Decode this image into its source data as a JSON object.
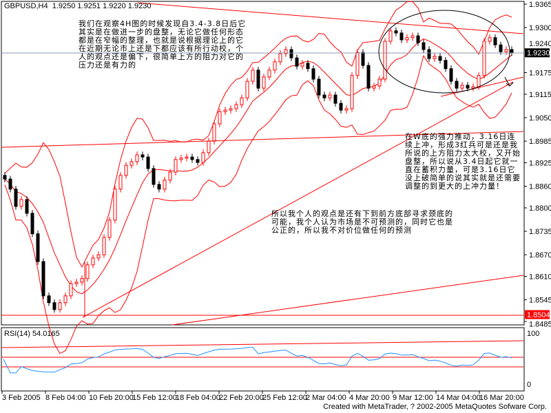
{
  "header": {
    "symbol": "GBPUSD,H4",
    "ohlc": "1.9250 1.9251 1.9220 1.9230"
  },
  "rsi": {
    "label": "RSI(14) 54.0165",
    "axis": [
      "100",
      "0"
    ]
  },
  "credit": "Created with MetaTrader, ? 2002-2005 MetaQuotes Sofware Corp.",
  "notes": [
    "我们在观察4H图的时候发现自3.4-3.8日后它其实是在做进一步的盘整，无论它做任何形态都是在窄幅的整理，也就是说根据理论上的它在近期无论市上还是下都应该有所行动校，个人的观点还是偏下，很简单上方的阻力对它的压力还是有力的",
    "在W底的强力推动，3.16日连续上冲，形成3红兵可是还是我所说的上方阻力太大校，又开始盘整，所以说从3.4日起它就一直在蓄积力量，可是3.16日它没上破简单的说其实就是还需要调整的到更大的上冲力量！",
    "所以我个人的观点是还有下到前方底部寻求颈底的可能，我个人认为市场是不可预测的，同时它也是公正的，所以我不对价位做任何的预测"
  ],
  "chart_data": {
    "type": "candlestick",
    "title": "GBPUSD,H4",
    "ylim": [
      1.8485,
      1.9365
    ],
    "y_ticks": [
      "1.9365",
      "1.9300",
      "1.9240",
      "1.9175",
      "1.9115",
      "1.9050",
      "1.8985",
      "1.8925",
      "1.8860",
      "1.8800",
      "1.8735",
      "1.8670",
      "1.8610",
      "1.8545",
      "1.8485"
    ],
    "x_ticks": [
      "3 Feb 2005",
      "8 Feb 04:00",
      "10 Feb 20:00",
      "15 Feb 12:00",
      "18 Feb 04:00",
      "22 Feb 20:00",
      "25 Feb 12:00",
      "2 Mar 04:00",
      "4 Mar 20:00",
      "9 Mar 12:00",
      "14 Mar 04:00",
      "16 Mar 20:00"
    ],
    "current_price": "1.9230",
    "marked_level": "1.8504",
    "colors": {
      "up": "#ff0000",
      "down": "#000000",
      "bands": "#ff0000",
      "rsi": "#1e90ff",
      "current_label_bg": "#000000",
      "level_label_bg": "#ff0000"
    },
    "closes": [
      1.888,
      1.8852,
      1.8804,
      1.8823,
      1.8785,
      1.8728,
      1.8651,
      1.8556,
      1.8537,
      1.8518,
      1.8537,
      1.8556,
      1.859,
      1.8594,
      1.8604,
      1.8642,
      1.8661,
      1.867,
      1.8718,
      1.8766,
      1.8852,
      1.889,
      1.8918,
      1.8928,
      1.8947,
      1.8941,
      1.8909,
      1.8865,
      1.8852,
      1.8877,
      1.8899,
      1.8934,
      1.8938,
      1.8941,
      1.8934,
      1.8926,
      1.8953,
      1.8985,
      1.9033,
      1.9067,
      1.9071,
      1.9075,
      1.9086,
      1.9105,
      1.9151,
      1.9182,
      1.9132,
      1.9163,
      1.9182,
      1.9205,
      1.9228,
      1.9239,
      1.9216,
      1.9193,
      1.9201,
      1.9186,
      1.9157,
      1.9113,
      1.9105,
      1.9113,
      1.909,
      1.9071,
      1.9075,
      1.9167,
      1.9231,
      1.9195,
      1.9132,
      1.9138,
      1.9157,
      1.9262,
      1.9291,
      1.9285,
      1.9266,
      1.9272,
      1.9277,
      1.9258,
      1.9239,
      1.9214,
      1.922,
      1.9209,
      1.9186,
      1.9151,
      1.9132,
      1.914,
      1.9132,
      1.9136,
      1.9167,
      1.9262,
      1.9272,
      1.9252,
      1.9233,
      1.9239,
      1.923
    ],
    "indicators": [
      "Bollinger Bands",
      "RSI(14)"
    ]
  }
}
